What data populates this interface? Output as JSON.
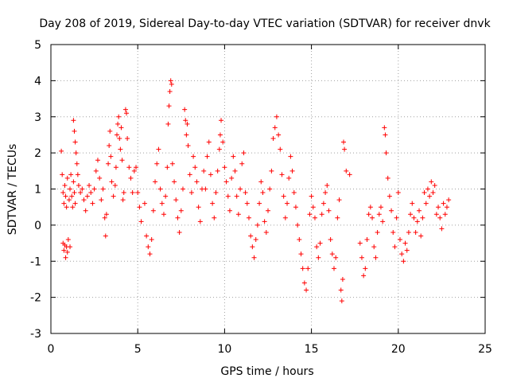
{
  "chart_data": {
    "type": "scatter",
    "title": "Day 208 of 2019, Sidereal Day-to-day VTEC variation (SDTVAR) for receiver dnvk",
    "xlabel": "GPS time / hours",
    "ylabel": "SDTVAR / TECUs",
    "xlim": [
      0,
      25
    ],
    "ylim": [
      -3,
      5
    ],
    "x_ticks": [
      0,
      5,
      10,
      15,
      20,
      25
    ],
    "y_ticks": [
      -3,
      -2,
      -1,
      0,
      1,
      2,
      3,
      4,
      5
    ],
    "grid": true,
    "marker": "+",
    "color": "#ff0000",
    "series": [
      {
        "name": "SDTVAR",
        "points": [
          [
            0.6,
            2.05
          ],
          [
            0.65,
            1.4
          ],
          [
            0.7,
            0.9
          ],
          [
            0.75,
            0.6
          ],
          [
            0.8,
            1.1
          ],
          [
            0.85,
            0.8
          ],
          [
            0.9,
            0.5
          ],
          [
            0.95,
            1.3
          ],
          [
            0.7,
            -0.5
          ],
          [
            0.75,
            -0.7
          ],
          [
            0.8,
            -0.55
          ],
          [
            0.85,
            -0.9
          ],
          [
            0.9,
            -0.6
          ],
          [
            0.95,
            -0.75
          ],
          [
            1.0,
            -0.4
          ],
          [
            1.1,
            -0.6
          ],
          [
            1.05,
            0.7
          ],
          [
            1.1,
            1.0
          ],
          [
            1.15,
            1.4
          ],
          [
            1.2,
            0.8
          ],
          [
            1.25,
            0.5
          ],
          [
            1.3,
            1.2
          ],
          [
            1.35,
            0.9
          ],
          [
            1.4,
            0.6
          ],
          [
            1.3,
            2.9
          ],
          [
            1.35,
            2.6
          ],
          [
            1.4,
            2.3
          ],
          [
            1.45,
            2.0
          ],
          [
            1.5,
            1.7
          ],
          [
            1.55,
            1.4
          ],
          [
            1.6,
            1.1
          ],
          [
            1.7,
            0.9
          ],
          [
            1.8,
            1.0
          ],
          [
            1.9,
            0.7
          ],
          [
            2.0,
            0.4
          ],
          [
            2.1,
            0.8
          ],
          [
            2.2,
            1.1
          ],
          [
            2.3,
            0.9
          ],
          [
            2.4,
            0.6
          ],
          [
            2.5,
            1.0
          ],
          [
            2.6,
            1.5
          ],
          [
            2.7,
            1.8
          ],
          [
            2.8,
            1.3
          ],
          [
            2.9,
            0.7
          ],
          [
            3.0,
            1.0
          ],
          [
            3.1,
            0.2
          ],
          [
            3.15,
            -0.3
          ],
          [
            3.2,
            0.3
          ],
          [
            3.3,
            1.7
          ],
          [
            3.35,
            2.2
          ],
          [
            3.4,
            2.6
          ],
          [
            3.45,
            1.9
          ],
          [
            3.5,
            1.2
          ],
          [
            3.6,
            0.8
          ],
          [
            3.7,
            1.1
          ],
          [
            3.75,
            1.6
          ],
          [
            3.8,
            2.5
          ],
          [
            3.85,
            2.8
          ],
          [
            3.9,
            3.0
          ],
          [
            3.95,
            2.4
          ],
          [
            4.0,
            2.1
          ],
          [
            4.05,
            2.7
          ],
          [
            4.1,
            1.8
          ],
          [
            4.15,
            0.7
          ],
          [
            4.2,
            0.9
          ],
          [
            4.3,
            3.2
          ],
          [
            4.35,
            3.1
          ],
          [
            4.4,
            2.4
          ],
          [
            4.5,
            1.6
          ],
          [
            4.6,
            1.3
          ],
          [
            4.7,
            0.9
          ],
          [
            4.8,
            1.5
          ],
          [
            4.9,
            1.6
          ],
          [
            5.0,
            0.9
          ],
          [
            5.1,
            0.5
          ],
          [
            5.2,
            0.1
          ],
          [
            5.4,
            0.6
          ],
          [
            5.5,
            -0.3
          ],
          [
            5.6,
            -0.6
          ],
          [
            5.7,
            -0.8
          ],
          [
            5.8,
            -0.4
          ],
          [
            5.9,
            0.4
          ],
          [
            6.0,
            1.2
          ],
          [
            6.1,
            1.7
          ],
          [
            6.2,
            2.1
          ],
          [
            6.3,
            1.0
          ],
          [
            6.4,
            0.6
          ],
          [
            6.5,
            0.3
          ],
          [
            6.6,
            0.8
          ],
          [
            6.7,
            1.6
          ],
          [
            6.75,
            2.8
          ],
          [
            6.8,
            3.3
          ],
          [
            6.85,
            3.7
          ],
          [
            6.9,
            4.0
          ],
          [
            6.95,
            3.9
          ],
          [
            7.0,
            1.7
          ],
          [
            7.1,
            1.2
          ],
          [
            7.2,
            0.7
          ],
          [
            7.3,
            0.2
          ],
          [
            7.4,
            -0.2
          ],
          [
            7.5,
            0.4
          ],
          [
            7.6,
            1.0
          ],
          [
            7.7,
            3.2
          ],
          [
            7.75,
            2.9
          ],
          [
            7.8,
            2.5
          ],
          [
            7.85,
            2.8
          ],
          [
            7.9,
            2.2
          ],
          [
            8.0,
            1.4
          ],
          [
            8.1,
            0.9
          ],
          [
            8.2,
            1.9
          ],
          [
            8.3,
            1.6
          ],
          [
            8.4,
            1.2
          ],
          [
            8.5,
            0.5
          ],
          [
            8.6,
            0.1
          ],
          [
            8.7,
            1.0
          ],
          [
            8.8,
            1.5
          ],
          [
            8.9,
            1.0
          ],
          [
            9.0,
            1.9
          ],
          [
            9.1,
            2.3
          ],
          [
            9.2,
            1.4
          ],
          [
            9.3,
            0.6
          ],
          [
            9.4,
            0.2
          ],
          [
            9.5,
            0.9
          ],
          [
            9.6,
            1.5
          ],
          [
            9.7,
            2.1
          ],
          [
            9.75,
            2.5
          ],
          [
            9.8,
            2.9
          ],
          [
            9.9,
            2.3
          ],
          [
            10.0,
            1.6
          ],
          [
            10.1,
            1.2
          ],
          [
            10.2,
            0.8
          ],
          [
            10.3,
            0.4
          ],
          [
            10.4,
            1.3
          ],
          [
            10.5,
            1.9
          ],
          [
            10.6,
            1.5
          ],
          [
            10.7,
            0.8
          ],
          [
            10.8,
            0.3
          ],
          [
            10.9,
            1.0
          ],
          [
            11.0,
            1.7
          ],
          [
            11.1,
            2.0
          ],
          [
            11.2,
            0.9
          ],
          [
            11.3,
            0.6
          ],
          [
            11.4,
            0.2
          ],
          [
            11.5,
            -0.3
          ],
          [
            11.6,
            -0.6
          ],
          [
            11.7,
            -0.9
          ],
          [
            11.8,
            -0.4
          ],
          [
            11.9,
            0.0
          ],
          [
            12.0,
            0.6
          ],
          [
            12.1,
            1.2
          ],
          [
            12.2,
            0.9
          ],
          [
            12.3,
            0.1
          ],
          [
            12.4,
            -0.2
          ],
          [
            12.5,
            0.4
          ],
          [
            12.6,
            1.0
          ],
          [
            12.7,
            1.5
          ],
          [
            12.8,
            2.4
          ],
          [
            12.9,
            2.7
          ],
          [
            13.0,
            3.0
          ],
          [
            13.1,
            2.5
          ],
          [
            13.2,
            2.1
          ],
          [
            13.3,
            1.4
          ],
          [
            13.4,
            0.8
          ],
          [
            13.5,
            0.2
          ],
          [
            13.6,
            0.6
          ],
          [
            13.7,
            1.3
          ],
          [
            13.8,
            1.9
          ],
          [
            13.9,
            1.5
          ],
          [
            14.0,
            0.9
          ],
          [
            14.1,
            0.5
          ],
          [
            14.2,
            0.0
          ],
          [
            14.3,
            -0.4
          ],
          [
            14.4,
            -0.8
          ],
          [
            14.5,
            -1.2
          ],
          [
            14.6,
            -1.6
          ],
          [
            14.7,
            -1.8
          ],
          [
            14.8,
            -1.2
          ],
          [
            14.9,
            0.3
          ],
          [
            15.0,
            0.8
          ],
          [
            15.1,
            0.5
          ],
          [
            15.2,
            0.2
          ],
          [
            15.3,
            -0.6
          ],
          [
            15.4,
            -0.9
          ],
          [
            15.5,
            -0.5
          ],
          [
            15.6,
            0.3
          ],
          [
            15.7,
            0.6
          ],
          [
            15.8,
            0.9
          ],
          [
            15.9,
            1.1
          ],
          [
            16.0,
            0.4
          ],
          [
            16.1,
            -0.4
          ],
          [
            16.2,
            -0.8
          ],
          [
            16.3,
            -1.2
          ],
          [
            16.4,
            -0.9
          ],
          [
            16.5,
            0.2
          ],
          [
            16.6,
            0.7
          ],
          [
            16.7,
            -1.8
          ],
          [
            16.75,
            -2.1
          ],
          [
            16.8,
            -1.5
          ],
          [
            16.85,
            2.3
          ],
          [
            16.9,
            2.1
          ],
          [
            17.0,
            1.5
          ],
          [
            17.2,
            1.4
          ],
          [
            17.8,
            -0.5
          ],
          [
            17.9,
            -0.9
          ],
          [
            18.0,
            -1.4
          ],
          [
            18.1,
            -1.2
          ],
          [
            18.2,
            -0.4
          ],
          [
            18.3,
            0.3
          ],
          [
            18.4,
            0.5
          ],
          [
            18.5,
            0.2
          ],
          [
            18.6,
            -0.6
          ],
          [
            18.7,
            -0.9
          ],
          [
            18.8,
            -0.2
          ],
          [
            18.9,
            0.3
          ],
          [
            19.0,
            0.5
          ],
          [
            19.1,
            0.1
          ],
          [
            19.2,
            2.7
          ],
          [
            19.25,
            2.5
          ],
          [
            19.3,
            2.0
          ],
          [
            19.4,
            1.3
          ],
          [
            19.5,
            0.8
          ],
          [
            19.6,
            0.4
          ],
          [
            19.7,
            -0.2
          ],
          [
            19.8,
            -0.6
          ],
          [
            19.9,
            0.2
          ],
          [
            20.0,
            0.9
          ],
          [
            20.1,
            -0.4
          ],
          [
            20.2,
            -0.8
          ],
          [
            20.3,
            -1.0
          ],
          [
            20.4,
            -0.5
          ],
          [
            20.5,
            -0.7
          ],
          [
            20.6,
            -0.2
          ],
          [
            20.7,
            0.3
          ],
          [
            20.8,
            0.6
          ],
          [
            20.9,
            0.2
          ],
          [
            21.0,
            -0.2
          ],
          [
            21.1,
            0.1
          ],
          [
            21.2,
            0.4
          ],
          [
            21.3,
            -0.3
          ],
          [
            21.4,
            0.2
          ],
          [
            21.5,
            0.9
          ],
          [
            21.6,
            0.6
          ],
          [
            21.7,
            1.0
          ],
          [
            21.8,
            0.8
          ],
          [
            21.9,
            1.2
          ],
          [
            22.0,
            0.9
          ],
          [
            22.1,
            1.1
          ],
          [
            22.2,
            0.3
          ],
          [
            22.3,
            0.5
          ],
          [
            22.4,
            0.2
          ],
          [
            22.5,
            -0.1
          ],
          [
            22.6,
            0.6
          ],
          [
            22.7,
            0.3
          ],
          [
            22.8,
            0.5
          ],
          [
            22.9,
            0.7
          ]
        ]
      }
    ]
  }
}
